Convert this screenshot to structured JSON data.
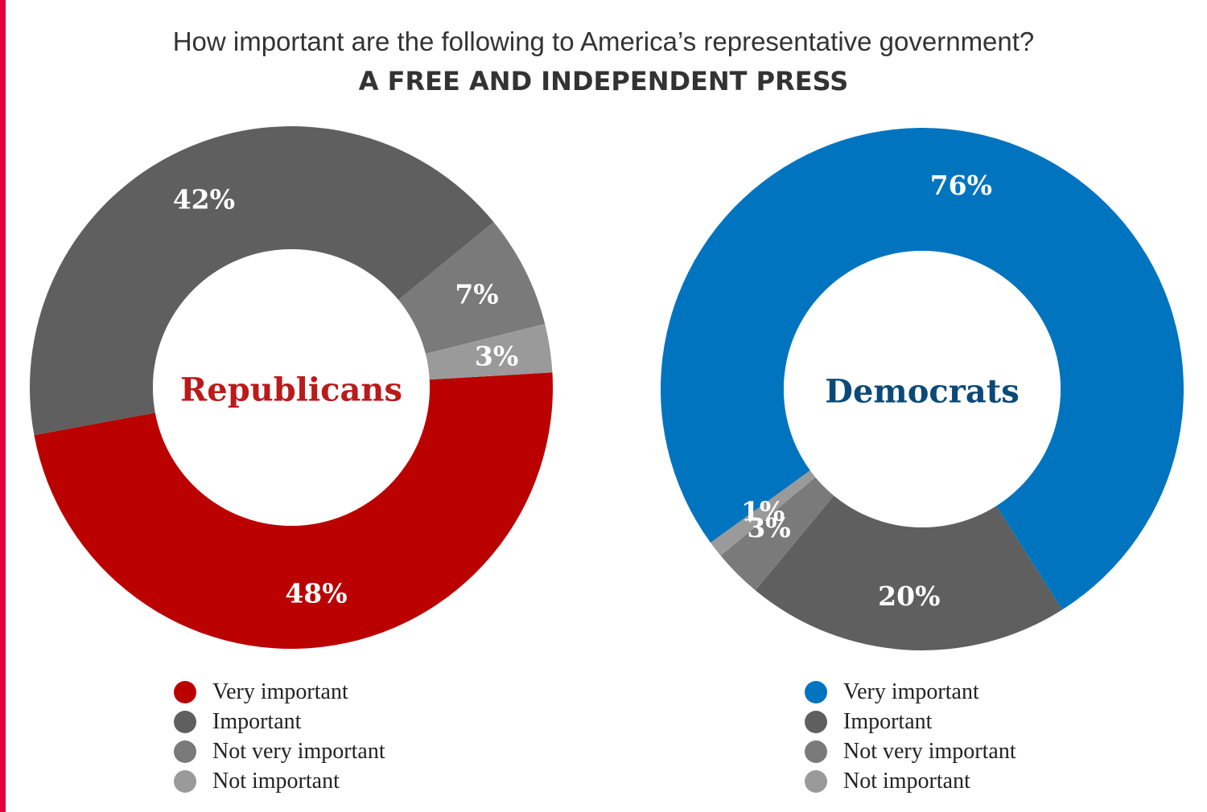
{
  "header": {
    "question": "How important are the following to America’s representative government?",
    "subject": "A FREE AND INDEPENDENT PRESS"
  },
  "colors": {
    "accent_bar": "#e4003b",
    "value_label": "#ffffff"
  },
  "chart_data": [
    {
      "type": "pie",
      "style": "donut",
      "title": "Republicans",
      "title_color": "#bb1a1a",
      "categories": [
        "Very important",
        "Important",
        "Not very important",
        "Not important"
      ],
      "values": [
        48,
        42,
        7,
        3
      ],
      "value_labels": [
        "48%",
        "42%",
        "7%",
        "3%"
      ],
      "colors": [
        "#bb0000",
        "#5f5f5f",
        "#7a7a7a",
        "#9a9a9a"
      ],
      "start_angle_deg": 86.7,
      "direction": "clockwise",
      "legend_position": "bottom"
    },
    {
      "type": "pie",
      "style": "donut",
      "title": "Democrats",
      "title_color": "#0b4a78",
      "categories": [
        "Very important",
        "Important",
        "Not very important",
        "Not important"
      ],
      "values": [
        76,
        20,
        3,
        1
      ],
      "value_labels": [
        "76%",
        "20%",
        "3%",
        "1%"
      ],
      "colors": [
        "#0174c0",
        "#5f5f5f",
        "#7a7a7a",
        "#9a9a9a"
      ],
      "start_angle_deg": -126,
      "direction": "clockwise",
      "legend_position": "bottom"
    }
  ]
}
